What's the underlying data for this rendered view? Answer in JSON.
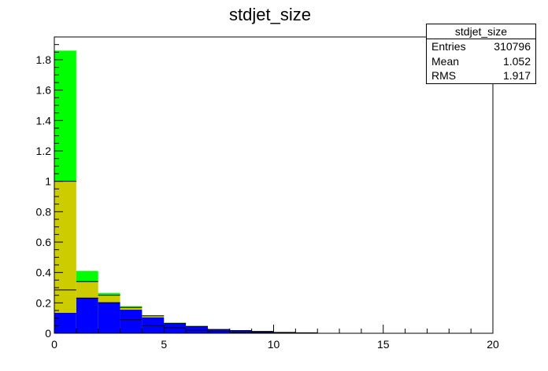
{
  "chart_data": {
    "type": "bar",
    "title": "stdjet_size",
    "xlabel": "",
    "ylabel": "",
    "xlim": [
      0,
      20
    ],
    "ylim": [
      0,
      1.95
    ],
    "x_ticks": [
      "0",
      "5",
      "10",
      "15",
      "20"
    ],
    "y_ticks": [
      "0",
      "0.2",
      "0.4",
      "0.6",
      "0.8",
      "1",
      "1.2",
      "1.4",
      "1.6",
      "1.8"
    ],
    "bin_edges": [
      0,
      1,
      2,
      3,
      4,
      5,
      6,
      7,
      8,
      9,
      10,
      11,
      12,
      13,
      14,
      15,
      16,
      17,
      18,
      19,
      20
    ],
    "stacked": true,
    "series": [
      {
        "color": "#0000ff",
        "values": [
          0.135,
          0.235,
          0.205,
          0.155,
          0.105,
          0.065,
          0.045,
          0.025,
          0.018,
          0.012,
          0.006,
          0.003,
          0,
          0,
          0,
          0,
          0,
          0,
          0,
          0
        ]
      },
      {
        "color": "#cccc00",
        "values": [
          0.865,
          0.105,
          0.045,
          0.015,
          0.008,
          0.003,
          0.002,
          0.001,
          0,
          0,
          0,
          0,
          0,
          0,
          0,
          0,
          0,
          0,
          0,
          0
        ]
      },
      {
        "color": "#00ff00",
        "values": [
          0.86,
          0.07,
          0.015,
          0.008,
          0.004,
          0.002,
          0.001,
          0,
          0,
          0,
          0,
          0,
          0,
          0,
          0,
          0,
          0,
          0,
          0,
          0
        ]
      }
    ],
    "markers": [
      {
        "color": "#000000",
        "values": [
          1.0,
          0.34,
          0.25,
          0.17,
          0.115,
          0.065,
          0.045,
          0.025,
          0.018,
          0.012,
          0.006,
          0.003,
          0,
          0,
          0,
          0,
          0,
          0,
          0,
          0
        ]
      },
      {
        "color": "#000000",
        "values": [
          0.285,
          0.23,
          0.2,
          0.09,
          0.05,
          0.035,
          0.02,
          0.012,
          0.008,
          0.005,
          0.003,
          0.001,
          0,
          0,
          0,
          0,
          0,
          0,
          0,
          0
        ]
      }
    ],
    "legend": "none",
    "grid": false
  },
  "stats": {
    "title": "stdjet_size",
    "rows": [
      {
        "label": "Entries",
        "value": "310796"
      },
      {
        "label": "Mean",
        "value": "1.052"
      },
      {
        "label": "RMS",
        "value": "1.917"
      }
    ]
  }
}
